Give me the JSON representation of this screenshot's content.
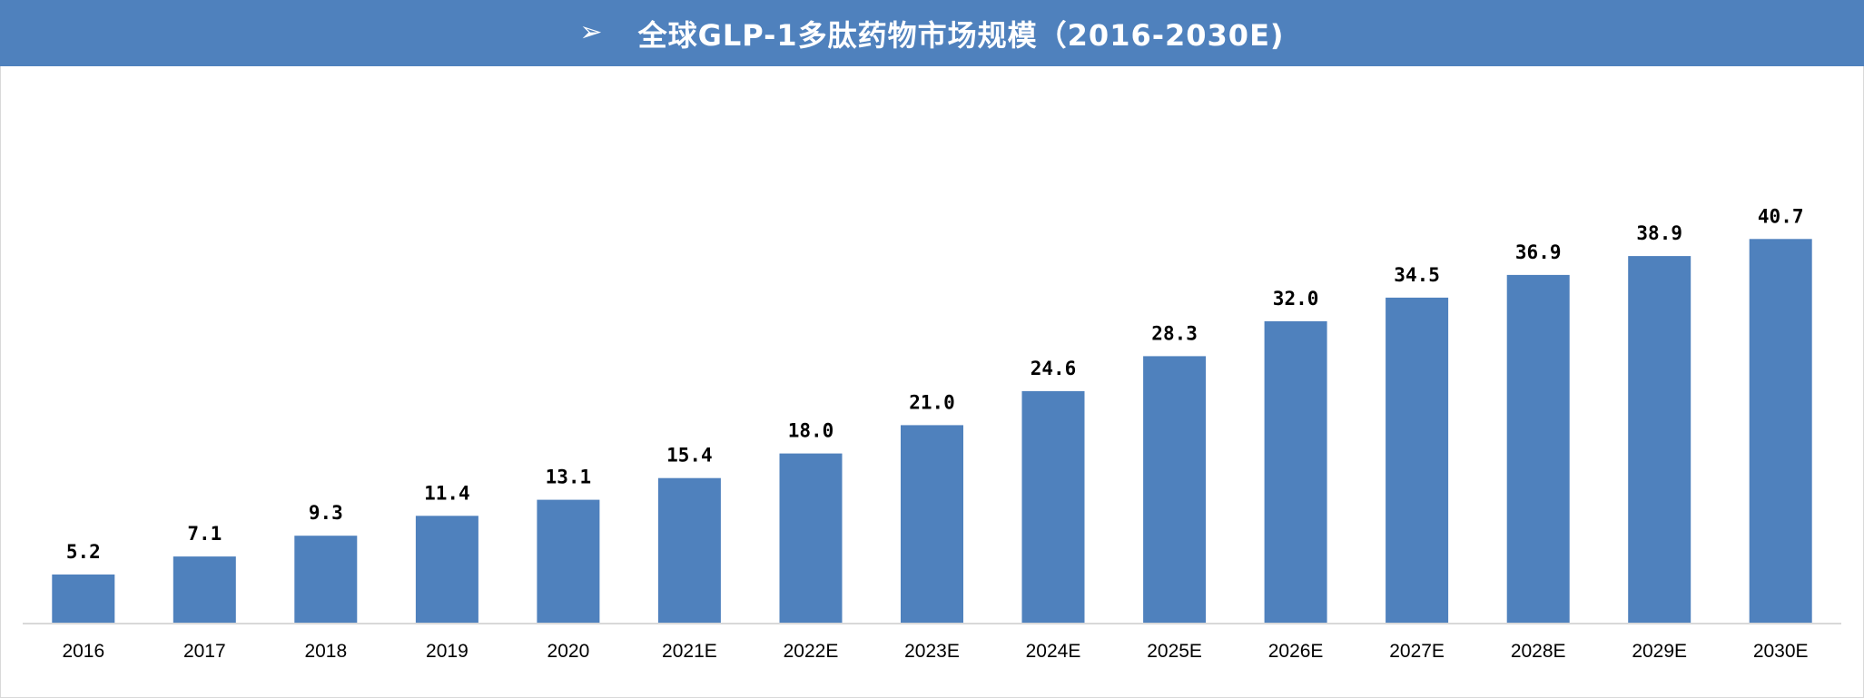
{
  "header": {
    "title": "全球GLP-1多肽药物市场规模（2016-2030E)",
    "bullet_icon": "➢",
    "background_color": "#4f81bd"
  },
  "chart_data": {
    "type": "bar",
    "title": "全球GLP-1多肽药物市场规模（2016-2030E)",
    "categories": [
      "2016",
      "2017",
      "2018",
      "2019",
      "2020",
      "2021E",
      "2022E",
      "2023E",
      "2024E",
      "2025E",
      "2026E",
      "2027E",
      "2028E",
      "2029E",
      "2030E"
    ],
    "values": [
      5.2,
      7.1,
      9.3,
      11.4,
      13.1,
      15.4,
      18.0,
      21.0,
      24.6,
      28.3,
      32.0,
      34.5,
      36.9,
      38.9,
      40.7
    ],
    "value_labels": [
      "5.2",
      "7.1",
      "9.3",
      "11.4",
      "13.1",
      "15.4",
      "18.0",
      "21.0",
      "24.6",
      "28.3",
      "32.0",
      "34.5",
      "36.9",
      "38.9",
      "40.7"
    ],
    "ylim": [
      0,
      45
    ],
    "bar_color": "#4f81bd",
    "grid": false,
    "legend": false
  }
}
